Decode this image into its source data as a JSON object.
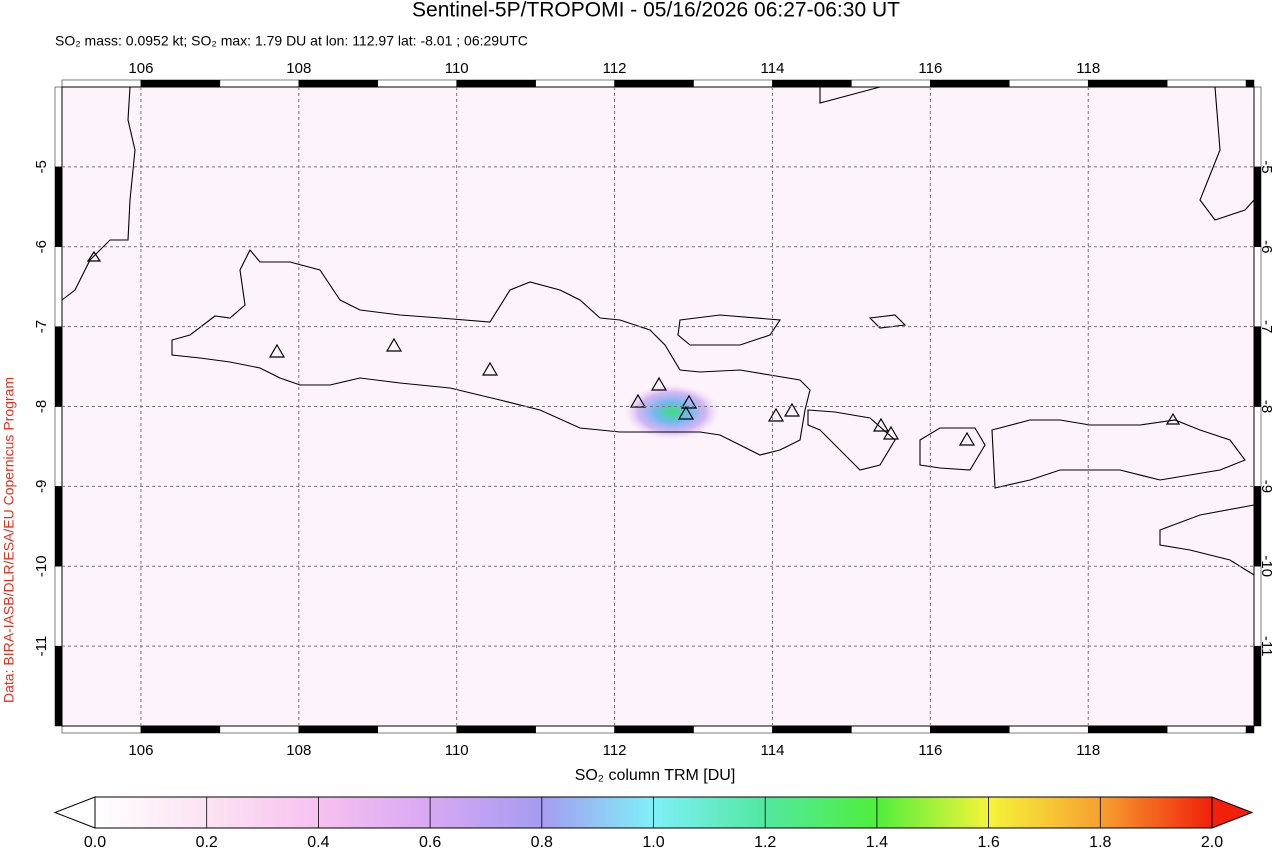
{
  "header": {
    "title": "Sentinel-5P/TROPOMI - 05/16/2026 06:27-06:30 UT",
    "subtitle": "SO₂ mass: 0.0952 kt; SO₂ max: 1.79 DU at lon: 112.97 lat: -8.01 ; 06:29UTC"
  },
  "credit": "Data: BIRA-IASB/DLR/ESA/EU Copernicus Program",
  "map": {
    "lonlim": [
      105.0,
      120.1
    ],
    "latlim": [
      -12,
      -4
    ],
    "lonticks": [
      106,
      108,
      110,
      112,
      114,
      116,
      118
    ],
    "latticks": [
      -5,
      -6,
      -7,
      -8,
      -9,
      -10,
      -11
    ]
  },
  "colorbar": {
    "label": "SO₂ column TRM [DU]",
    "lim": [
      0,
      2
    ],
    "ticks": [
      {
        "value": 0,
        "label": "0.0"
      },
      0.2,
      0.4,
      0.6,
      0.8,
      {
        "value": 1,
        "label": "1.0"
      },
      1.2,
      1.4,
      1.6,
      1.8,
      {
        "value": 2,
        "label": "2.0"
      }
    ]
  }
}
